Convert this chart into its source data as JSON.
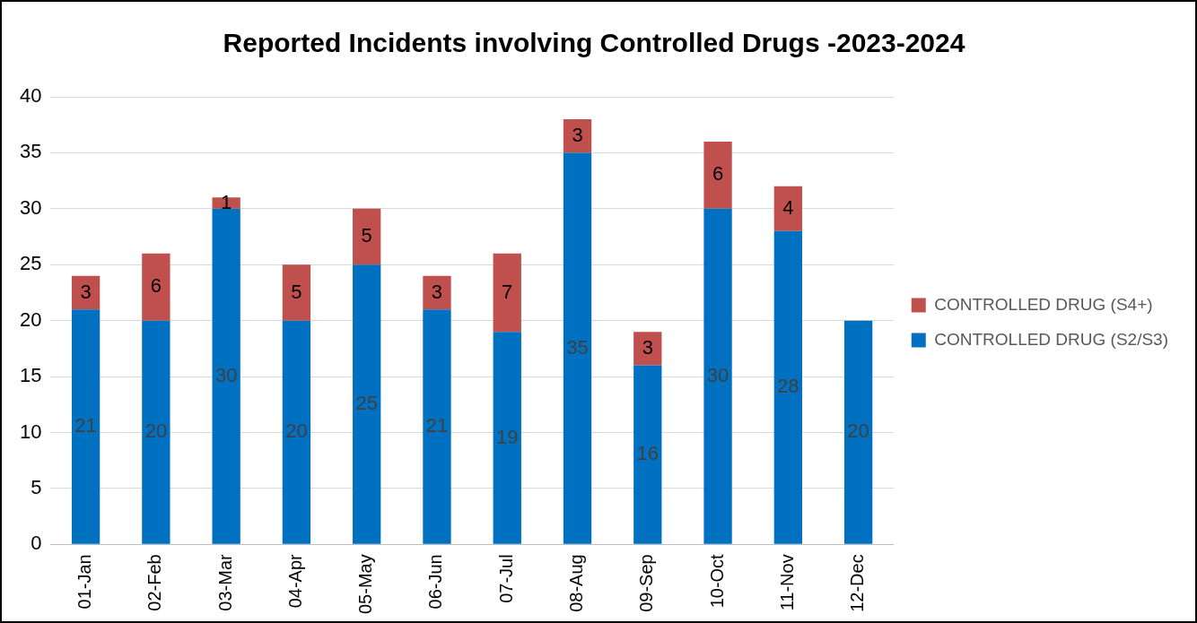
{
  "chart_data": {
    "type": "bar",
    "title": "Reported Incidents involving Controlled Drugs -2023-2024",
    "categories": [
      "01-Jan",
      "02-Feb",
      "03-Mar",
      "04-Apr",
      "05-May",
      "06-Jun",
      "07-Jul",
      "08-Aug",
      "09-Sep",
      "10-Oct",
      "11-Nov",
      "12-Dec"
    ],
    "series": [
      {
        "name": "CONTROLLED DRUG (S2/S3)",
        "color": "#0070c0",
        "values": [
          21,
          20,
          30,
          20,
          25,
          21,
          19,
          35,
          16,
          30,
          28,
          20
        ]
      },
      {
        "name": "CONTROLLED DRUG (S4+)",
        "color": "#c0504d",
        "values": [
          3,
          6,
          1,
          5,
          5,
          3,
          7,
          3,
          3,
          6,
          4,
          null
        ]
      }
    ],
    "stacked": true,
    "ylim": [
      0,
      40
    ],
    "yticks": [
      0,
      5,
      10,
      15,
      20,
      25,
      30,
      35,
      40
    ],
    "grid": "y",
    "legend": "right",
    "data_labels": true
  }
}
